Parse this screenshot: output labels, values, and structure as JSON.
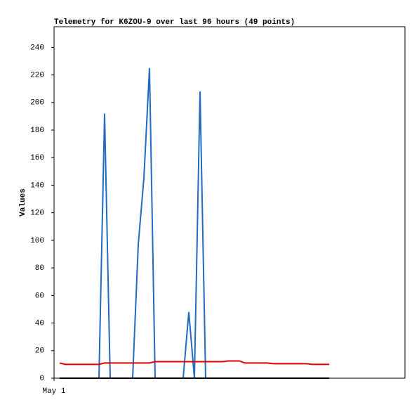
{
  "chart_data": {
    "type": "line",
    "title": "Telemetry for K6ZOU-9 over last 96 hours (49 points)",
    "y_label": "Values",
    "x": [
      2,
      4,
      6,
      8,
      10,
      12,
      14,
      16,
      18,
      20,
      22,
      24,
      26,
      28,
      30,
      32,
      34,
      36,
      38,
      40,
      42,
      44,
      46,
      48,
      50,
      52,
      54,
      56,
      58,
      60,
      62,
      64,
      66,
      68,
      70,
      72,
      74,
      76,
      78,
      80,
      82,
      84,
      86,
      88,
      90,
      92,
      94,
      96,
      98
    ],
    "xlim": [
      0,
      125
    ],
    "xticks": [
      {
        "value": 0,
        "label": "May 1"
      }
    ],
    "ylim": [
      0,
      255
    ],
    "yticks": [
      0,
      20,
      40,
      60,
      80,
      100,
      120,
      140,
      160,
      180,
      200,
      220,
      240
    ],
    "grid": false,
    "series": [
      {
        "color": "#1f6cc0",
        "values": [
          0,
          0,
          0,
          0,
          0,
          0,
          0,
          0,
          192,
          0,
          0,
          0,
          0,
          0,
          97,
          145,
          225,
          0,
          0,
          0,
          0,
          0,
          0,
          48,
          0,
          208,
          0,
          0,
          0,
          0,
          0,
          0,
          0,
          0,
          0,
          0,
          0,
          0,
          0,
          0,
          0,
          0,
          0,
          0,
          0,
          0,
          0,
          0,
          0
        ]
      },
      {
        "color": "#e00000",
        "values": [
          11,
          10,
          10,
          10,
          10,
          10,
          10,
          10,
          11,
          11,
          11,
          11,
          11,
          11,
          11,
          11,
          11,
          12,
          12,
          12,
          12,
          12,
          12,
          12,
          12,
          12,
          12,
          12,
          12,
          12,
          12.5,
          12.5,
          12.5,
          11,
          11,
          11,
          11,
          11,
          10.5,
          10.5,
          10.5,
          10.5,
          10.5,
          10.5,
          10.5,
          10,
          10,
          10,
          10
        ]
      },
      {
        "color": "#000000",
        "values": [
          0,
          0,
          0,
          0,
          0,
          0,
          0,
          0,
          0,
          0,
          0,
          0,
          0,
          0,
          0,
          0,
          0,
          0,
          0,
          0,
          0,
          0,
          0,
          0,
          0,
          0,
          0,
          0,
          0,
          0,
          0,
          0,
          0,
          0,
          0,
          0,
          0,
          0,
          0,
          0,
          0,
          0,
          0,
          0,
          0,
          0,
          0,
          0,
          0
        ]
      }
    ]
  }
}
